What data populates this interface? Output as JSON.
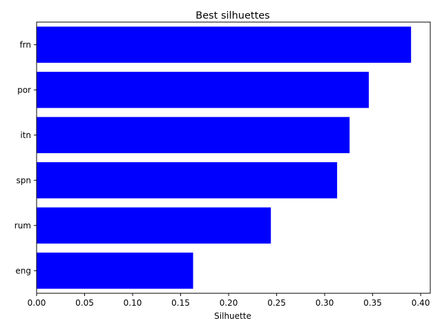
{
  "chart_data": {
    "type": "bar",
    "orientation": "horizontal",
    "title": "Best silhuettes",
    "xlabel": "Silhuette",
    "ylabel": "",
    "categories": [
      "frn",
      "por",
      "itn",
      "spn",
      "rum",
      "eng"
    ],
    "values": [
      0.39,
      0.346,
      0.326,
      0.313,
      0.244,
      0.163
    ],
    "xlim": [
      0.0,
      0.41
    ],
    "xticks": [
      "0.00",
      "0.05",
      "0.10",
      "0.15",
      "0.20",
      "0.25",
      "0.30",
      "0.35",
      "0.40"
    ],
    "bar_color": "#0000ff",
    "grid": false,
    "legend": "none"
  }
}
